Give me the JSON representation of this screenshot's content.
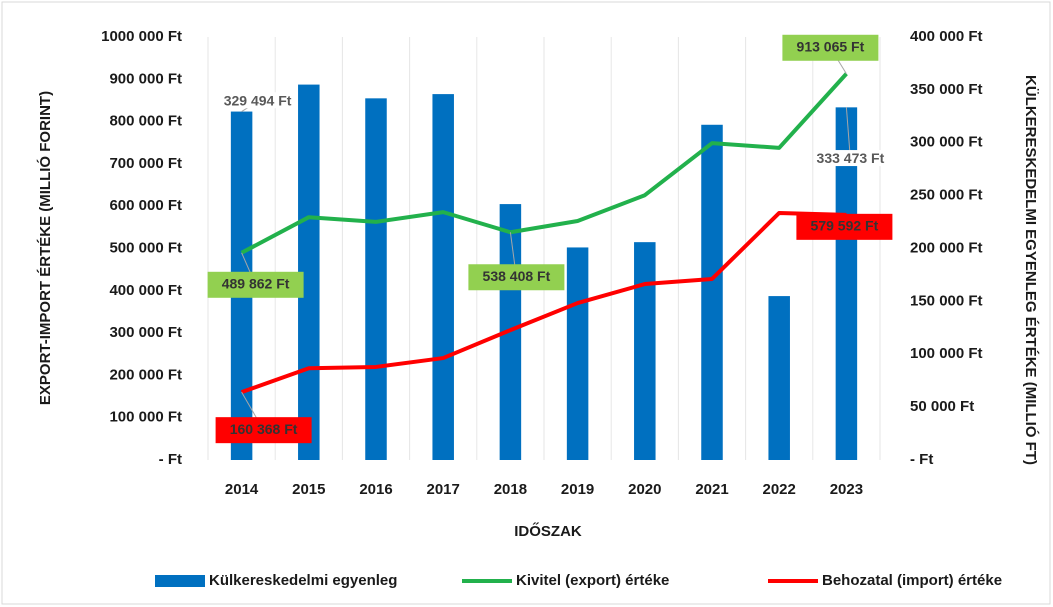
{
  "chart_data": {
    "type": "bar",
    "x_label": "IDŐSZAK",
    "y_label": "EXPORT-IMPORT ÉRTÉKE (MILLIÓ FORINT)",
    "y2_label": "KÜLKERESKEDELMI EGYENLEG ÉRTÉKE (MILLIÓ FT)",
    "categories": [
      "2014",
      "2015",
      "2016",
      "2017",
      "2018",
      "2019",
      "2020",
      "2021",
      "2022",
      "2023"
    ],
    "series": [
      {
        "name": "Külkereskedelmi egyenleg",
        "type": "bar",
        "axis": "y2",
        "color": "#0070c0",
        "values": [
          329494,
          355000,
          342000,
          346000,
          242000,
          201000,
          206000,
          317000,
          155000,
          333473
        ],
        "value_labels": [
          "329 494 Ft",
          null,
          null,
          null,
          null,
          null,
          null,
          null,
          null,
          "333 473 Ft"
        ]
      },
      {
        "name": "Kivitel (export) értéke",
        "type": "line",
        "axis": "y",
        "color": "#22b14c",
        "values": [
          489862,
          574000,
          563000,
          586000,
          538408,
          565000,
          626000,
          749000,
          738000,
          913065
        ],
        "value_labels": [
          "489 862 Ft",
          null,
          null,
          null,
          "538 408 Ft",
          null,
          null,
          null,
          null,
          "913 065 Ft"
        ]
      },
      {
        "name": "Behozatal (import) értéke",
        "type": "line",
        "axis": "y",
        "color": "#ff0000",
        "values": [
          160368,
          217000,
          220000,
          241000,
          307000,
          371000,
          416000,
          428000,
          584000,
          579592
        ],
        "value_labels": [
          "160 368 Ft",
          null,
          null,
          null,
          null,
          null,
          null,
          null,
          null,
          "579 592 Ft"
        ]
      }
    ],
    "ylim": [
      0,
      1000000
    ],
    "yticks": [
      {
        "value": 0,
        "label": "-  Ft"
      },
      {
        "value": 100000,
        "label": "100 000 Ft"
      },
      {
        "value": 200000,
        "label": "200 000 Ft"
      },
      {
        "value": 300000,
        "label": "300 000 Ft"
      },
      {
        "value": 400000,
        "label": "400 000 Ft"
      },
      {
        "value": 500000,
        "label": "500 000 Ft"
      },
      {
        "value": 600000,
        "label": "600 000 Ft"
      },
      {
        "value": 700000,
        "label": "700 000 Ft"
      },
      {
        "value": 800000,
        "label": "800 000 Ft"
      },
      {
        "value": 900000,
        "label": "900 000 Ft"
      },
      {
        "value": 1000000,
        "label": "1000 000 Ft"
      }
    ],
    "y2lim": [
      0,
      400000
    ],
    "y2ticks": [
      {
        "value": 0,
        "label": "-  Ft"
      },
      {
        "value": 50000,
        "label": "50 000 Ft"
      },
      {
        "value": 100000,
        "label": "100 000 Ft"
      },
      {
        "value": 150000,
        "label": "150 000 Ft"
      },
      {
        "value": 200000,
        "label": "200 000 Ft"
      },
      {
        "value": 250000,
        "label": "250 000 Ft"
      },
      {
        "value": 300000,
        "label": "300 000 Ft"
      },
      {
        "value": 350000,
        "label": "350 000 Ft"
      },
      {
        "value": 400000,
        "label": "400 000 Ft"
      }
    ],
    "legend": "bottom"
  }
}
